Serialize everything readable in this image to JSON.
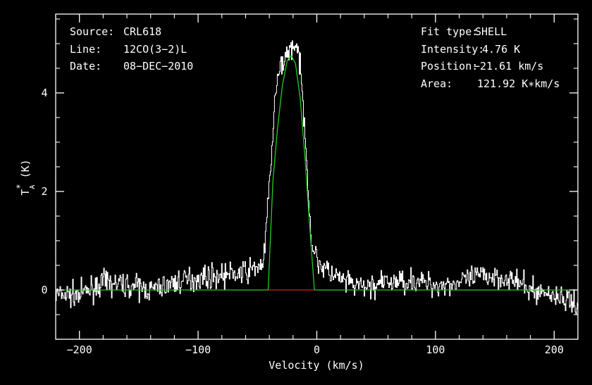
{
  "chart_data": {
    "type": "line",
    "xlabel": "Velocity (km/s)",
    "ylabel": "T*A (K)",
    "ylabel_parts": {
      "main": "T",
      "sup": "*",
      "sub": "A",
      "unit": "(K)"
    },
    "xlim": [
      -220,
      220
    ],
    "ylim": [
      -1.0,
      5.6
    ],
    "x_ticks": [
      -200,
      -100,
      0,
      100,
      200
    ],
    "x_tick_labels": [
      "−200",
      "−100",
      "0",
      "100",
      "200"
    ],
    "y_ticks": [
      0,
      2,
      4
    ],
    "y_tick_labels": [
      "0",
      "2",
      "4"
    ],
    "grid": false,
    "colors": {
      "background": "#000000",
      "axes": "#ffffff",
      "spectrum": "#ffffff",
      "fit": "#22cc22",
      "baseline_fit": "#cc2222"
    },
    "info_left": [
      {
        "key": "Source:",
        "value": "CRL618"
      },
      {
        "key": "Line:",
        "value": "12CO(3−2)L"
      },
      {
        "key": "Date:",
        "value": "08−DEC−2010"
      }
    ],
    "info_right": [
      {
        "key": "Fit type:",
        "value": "SHELL"
      },
      {
        "key": "Intensity:",
        "value": "4.76 K"
      },
      {
        "key": "Position:",
        "value": "−21.61 km/s"
      },
      {
        "key": "Area:",
        "value": "121.92 K∗km/s"
      }
    ],
    "series": [
      {
        "kind": "spectrum",
        "x": [
          -220,
          -200,
          -180,
          -160,
          -140,
          -120,
          -100,
          -80,
          -60,
          -45,
          -40,
          -35,
          -30,
          -25,
          -20,
          -15,
          -10,
          -5,
          0,
          10,
          20,
          30,
          40,
          60,
          80,
          100,
          120,
          140,
          160,
          180,
          200,
          220
        ],
        "y": [
          -0.1,
          -0.1,
          0.15,
          0.1,
          0.0,
          0.15,
          0.25,
          0.3,
          0.35,
          0.55,
          2.2,
          4.0,
          4.6,
          4.8,
          5.0,
          4.7,
          3.2,
          1.0,
          0.6,
          0.35,
          0.2,
          0.1,
          0.05,
          0.15,
          0.2,
          0.1,
          0.15,
          0.3,
          0.25,
          0.0,
          -0.1,
          -0.3
        ]
      },
      {
        "kind": "fit",
        "x": [
          -220,
          -41,
          -37,
          -33,
          -29,
          -25,
          -21.6,
          -18,
          -14,
          -10,
          -6,
          -2,
          220
        ],
        "y": [
          0,
          0,
          2.2,
          3.3,
          4.15,
          4.65,
          4.76,
          4.6,
          3.9,
          2.7,
          1.3,
          0,
          0
        ]
      },
      {
        "kind": "fit-baseline",
        "x": [
          -41,
          -2
        ],
        "y": [
          0,
          0
        ]
      }
    ]
  }
}
